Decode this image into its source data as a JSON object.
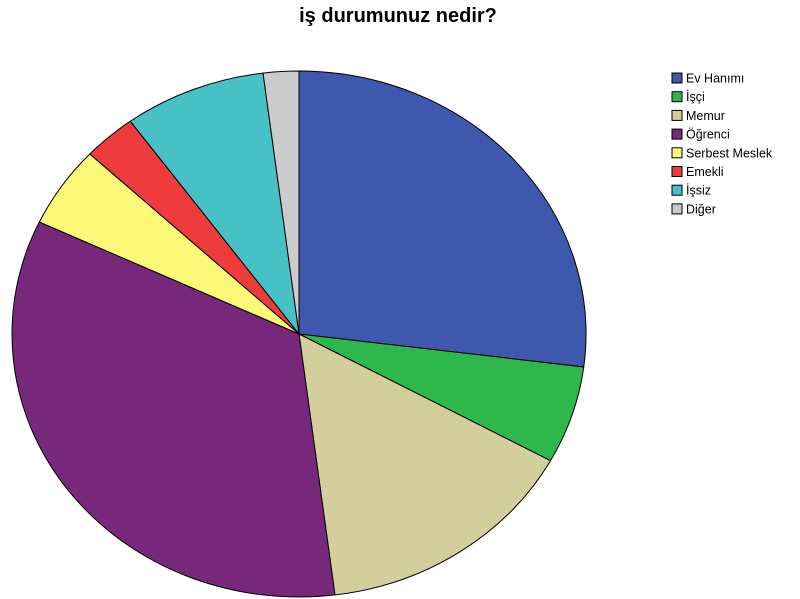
{
  "chart_data": {
    "type": "pie",
    "title": "iş durumunuz nedir?",
    "categories": [
      "Ev Hanımı",
      "İşçi",
      "Memur",
      "Öğrenci",
      "Serbest Meslek",
      "Emekli",
      "İşsiz",
      "Diğer"
    ],
    "values": [
      27.0,
      6.0,
      15.0,
      34.0,
      5.0,
      3.0,
      8.0,
      2.0
    ],
    "colors": [
      "#3f58ad",
      "#2eb84c",
      "#d4ce9c",
      "#78287a",
      "#fcf878",
      "#ee3b3c",
      "#48c1c6",
      "#cbcbcb"
    ],
    "start_angle": "12 o'clock",
    "direction": "clockwise",
    "legend_position": "top-right"
  }
}
